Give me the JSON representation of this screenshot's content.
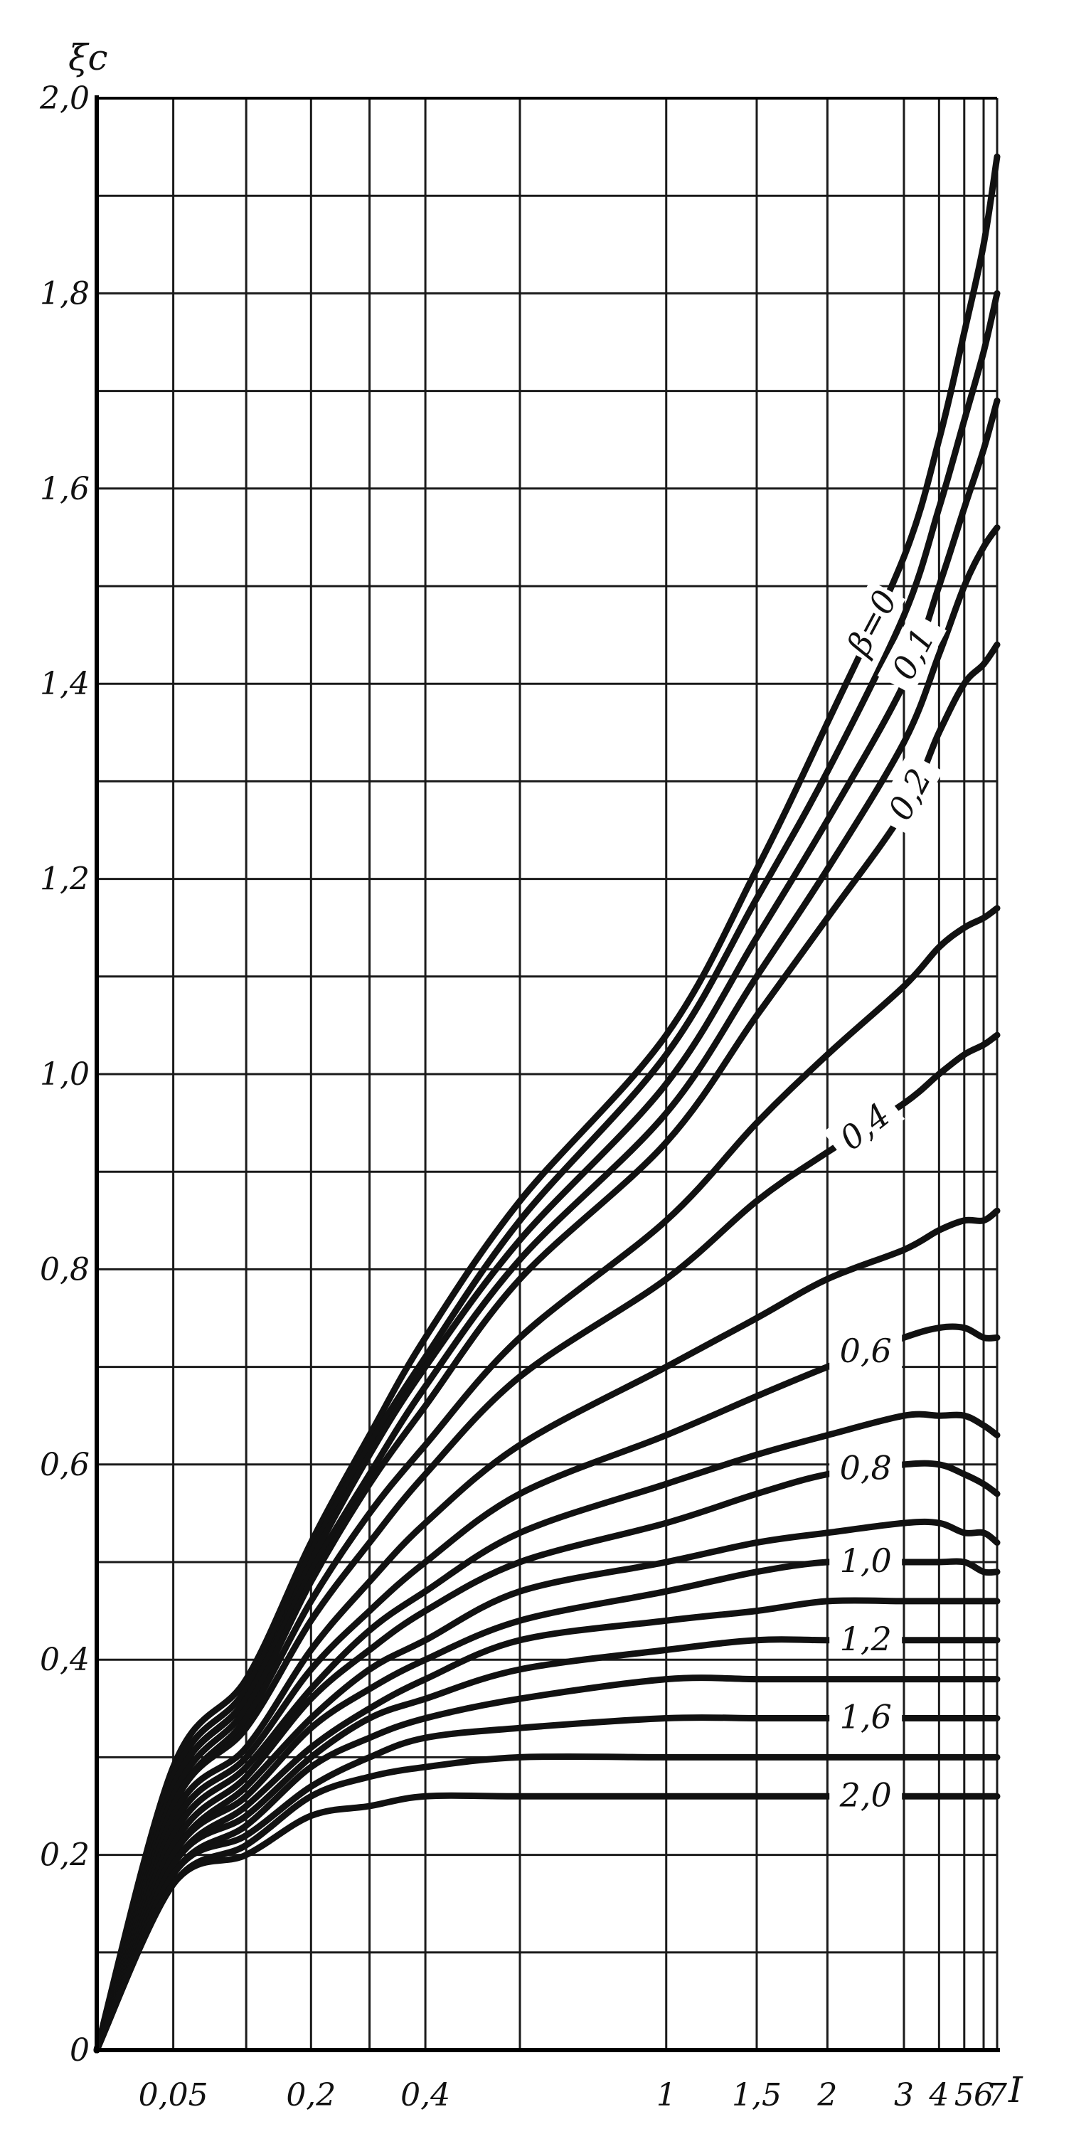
{
  "chart_data": {
    "type": "line",
    "ylabel": "ξc",
    "xlabel": "I",
    "xscale": "nonlinear (compressed, log-like)",
    "ylim": [
      0,
      2.0
    ],
    "grid": true,
    "legend": "none",
    "line_color": "#111111",
    "y_ticks": [
      {
        "value": 0,
        "label": "0"
      },
      {
        "value": 0.2,
        "label": "0,2"
      },
      {
        "value": 0.4,
        "label": "0,4"
      },
      {
        "value": 0.6,
        "label": "0,6"
      },
      {
        "value": 0.8,
        "label": "0,8"
      },
      {
        "value": 1.0,
        "label": "1,0"
      },
      {
        "value": 1.2,
        "label": "1,2"
      },
      {
        "value": 1.4,
        "label": "1,4"
      },
      {
        "value": 1.6,
        "label": "1,6"
      },
      {
        "value": 1.8,
        "label": "1,8"
      },
      {
        "value": 2.0,
        "label": "2,0"
      }
    ],
    "x_ticks": [
      {
        "value": 0.05,
        "label": "0,05"
      },
      {
        "value": 0.2,
        "label": "0,2"
      },
      {
        "value": 0.4,
        "label": "0,4"
      },
      {
        "value": 1,
        "label": "1"
      },
      {
        "value": 1.5,
        "label": "1,5"
      },
      {
        "value": 2,
        "label": "2"
      },
      {
        "value": 3,
        "label": "3"
      },
      {
        "value": 4,
        "label": "4"
      },
      {
        "value": 5,
        "label": "5"
      },
      {
        "value": 6,
        "label": "6"
      },
      {
        "value": 7,
        "label": "7"
      }
    ],
    "x_gridlines": [
      0.05,
      0.1,
      0.2,
      0.3,
      0.4,
      0.6,
      1,
      1.5,
      2,
      3,
      4,
      5,
      6,
      7
    ],
    "x_positions": [
      0,
      0.05,
      0.1,
      0.2,
      0.3,
      0.4,
      0.6,
      1,
      1.5,
      2,
      3,
      4,
      5,
      6,
      7
    ],
    "series": [
      {
        "name": "β=0",
        "y": [
          0,
          0.29,
          0.38,
          0.52,
          0.63,
          0.73,
          0.87,
          1.04,
          1.21,
          1.36,
          1.53,
          1.65,
          1.76,
          1.85,
          1.94
        ]
      },
      {
        "name": "",
        "y": [
          0,
          0.28,
          0.37,
          0.51,
          0.62,
          0.71,
          0.85,
          1.02,
          1.18,
          1.31,
          1.47,
          1.58,
          1.67,
          1.74,
          1.8
        ]
      },
      {
        "name": "0,1",
        "y": [
          0,
          0.27,
          0.36,
          0.5,
          0.61,
          0.7,
          0.83,
          0.99,
          1.14,
          1.26,
          1.4,
          1.5,
          1.58,
          1.64,
          1.69
        ]
      },
      {
        "name": "",
        "y": [
          0,
          0.27,
          0.36,
          0.49,
          0.59,
          0.68,
          0.81,
          0.96,
          1.1,
          1.21,
          1.34,
          1.43,
          1.5,
          1.54,
          1.56
        ]
      },
      {
        "name": "0,2",
        "y": [
          0,
          0.26,
          0.35,
          0.48,
          0.58,
          0.66,
          0.79,
          0.93,
          1.06,
          1.16,
          1.27,
          1.35,
          1.4,
          1.42,
          1.44
        ]
      },
      {
        "name": "",
        "y": [
          0,
          0.25,
          0.34,
          0.46,
          0.55,
          0.62,
          0.73,
          0.85,
          0.95,
          1.02,
          1.09,
          1.13,
          1.15,
          1.16,
          1.17
        ]
      },
      {
        "name": "0,4",
        "y": [
          0,
          0.25,
          0.33,
          0.44,
          0.52,
          0.59,
          0.69,
          0.79,
          0.87,
          0.92,
          0.97,
          1.0,
          1.02,
          1.03,
          1.04
        ]
      },
      {
        "name": "",
        "y": [
          0,
          0.24,
          0.31,
          0.41,
          0.48,
          0.54,
          0.62,
          0.7,
          0.75,
          0.79,
          0.82,
          0.84,
          0.85,
          0.85,
          0.86
        ]
      },
      {
        "name": "0,6",
        "y": [
          0,
          0.23,
          0.3,
          0.39,
          0.45,
          0.5,
          0.57,
          0.63,
          0.67,
          0.7,
          0.73,
          0.74,
          0.74,
          0.73,
          0.73
        ]
      },
      {
        "name": "",
        "y": [
          0,
          0.22,
          0.29,
          0.37,
          0.43,
          0.47,
          0.53,
          0.58,
          0.61,
          0.63,
          0.65,
          0.65,
          0.65,
          0.64,
          0.63
        ]
      },
      {
        "name": "0,8",
        "y": [
          0,
          0.21,
          0.28,
          0.36,
          0.41,
          0.45,
          0.5,
          0.54,
          0.57,
          0.59,
          0.6,
          0.6,
          0.59,
          0.58,
          0.57
        ]
      },
      {
        "name": "",
        "y": [
          0,
          0.2,
          0.27,
          0.34,
          0.39,
          0.42,
          0.47,
          0.5,
          0.52,
          0.53,
          0.54,
          0.54,
          0.53,
          0.53,
          0.52
        ]
      },
      {
        "name": "1,0",
        "y": [
          0,
          0.2,
          0.26,
          0.33,
          0.37,
          0.4,
          0.44,
          0.47,
          0.49,
          0.5,
          0.5,
          0.5,
          0.5,
          0.49,
          0.49
        ]
      },
      {
        "name": "",
        "y": [
          0,
          0.19,
          0.25,
          0.31,
          0.35,
          0.38,
          0.42,
          0.44,
          0.45,
          0.46,
          0.46,
          0.46,
          0.46,
          0.46,
          0.46
        ]
      },
      {
        "name": "1,2",
        "y": [
          0,
          0.19,
          0.24,
          0.3,
          0.34,
          0.36,
          0.39,
          0.41,
          0.42,
          0.42,
          0.42,
          0.42,
          0.42,
          0.42,
          0.42
        ]
      },
      {
        "name": "",
        "y": [
          0,
          0.18,
          0.23,
          0.29,
          0.32,
          0.34,
          0.36,
          0.38,
          0.38,
          0.38,
          0.38,
          0.38,
          0.38,
          0.38,
          0.38
        ]
      },
      {
        "name": "1,6",
        "y": [
          0,
          0.18,
          0.22,
          0.27,
          0.3,
          0.32,
          0.33,
          0.34,
          0.34,
          0.34,
          0.34,
          0.34,
          0.34,
          0.34,
          0.34
        ]
      },
      {
        "name": "",
        "y": [
          0,
          0.17,
          0.21,
          0.26,
          0.28,
          0.29,
          0.3,
          0.3,
          0.3,
          0.3,
          0.3,
          0.3,
          0.3,
          0.3,
          0.3
        ]
      },
      {
        "name": "2,0",
        "y": [
          0,
          0.17,
          0.2,
          0.24,
          0.25,
          0.26,
          0.26,
          0.26,
          0.26,
          0.26,
          0.26,
          0.26,
          0.26,
          0.26,
          0.26
        ]
      }
    ]
  }
}
